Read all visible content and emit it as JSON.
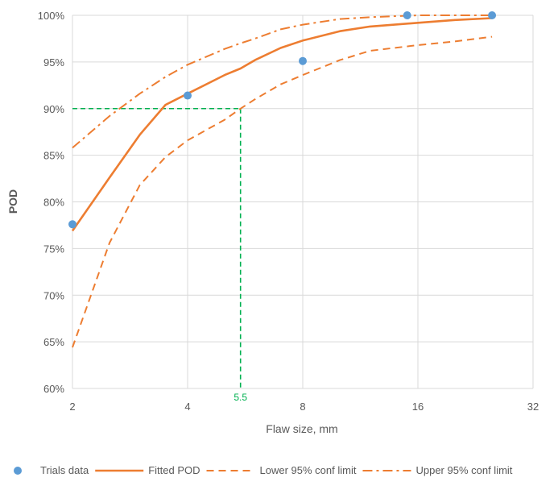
{
  "chart_data": {
    "type": "line",
    "xlabel": "Flaw size, mm",
    "ylabel": "POD",
    "x_scale": "log2",
    "xlim": [
      2,
      32
    ],
    "ylim": [
      60,
      100
    ],
    "x_ticks": [
      2,
      4,
      8,
      16,
      32
    ],
    "x_tick_labels": [
      "2",
      "4",
      "8",
      "16",
      "32"
    ],
    "y_ticks": [
      60,
      65,
      70,
      75,
      80,
      85,
      90,
      95,
      100
    ],
    "y_tick_labels": [
      "60%",
      "65%",
      "70%",
      "75%",
      "80%",
      "85%",
      "90%",
      "95%",
      "100%"
    ],
    "grid": true,
    "legend_position": "bottom",
    "annotation": {
      "label": "5.5",
      "x": 5.5,
      "y": 90,
      "color": "#00B050"
    },
    "series": [
      {
        "name": "Trials data",
        "kind": "scatter",
        "color": "#5B9BD5",
        "x": [
          2,
          4,
          8,
          15,
          25
        ],
        "y": [
          77.6,
          91.4,
          95.1,
          100,
          100
        ]
      },
      {
        "name": "Fitted POD",
        "kind": "line",
        "style": "solid",
        "color": "#ED7D31",
        "x": [
          2,
          2.5,
          3,
          3.5,
          4,
          5,
          5.5,
          6,
          7,
          8,
          10,
          12,
          16,
          20,
          25
        ],
        "y": [
          76.9,
          82.6,
          87.2,
          90.4,
          91.6,
          93.6,
          94.3,
          95.2,
          96.5,
          97.3,
          98.3,
          98.8,
          99.2,
          99.5,
          99.7
        ]
      },
      {
        "name": "Lower 95% conf limit",
        "kind": "line",
        "style": "dashed",
        "color": "#ED7D31",
        "x": [
          2,
          2.5,
          3,
          3.5,
          4,
          5,
          5.5,
          6,
          7,
          8,
          10,
          12,
          16,
          20,
          25
        ],
        "y": [
          64.4,
          75.6,
          81.8,
          84.8,
          86.6,
          88.8,
          90.0,
          91.0,
          92.6,
          93.6,
          95.2,
          96.2,
          96.8,
          97.2,
          97.7
        ]
      },
      {
        "name": "Upper 95% conf limit",
        "kind": "line",
        "style": "dashdot",
        "color": "#ED7D31",
        "x": [
          2,
          2.5,
          3,
          3.5,
          4,
          5,
          5.5,
          6,
          7,
          8,
          10,
          12,
          16,
          20,
          25
        ],
        "y": [
          85.8,
          89.2,
          91.6,
          93.4,
          94.7,
          96.4,
          97.0,
          97.5,
          98.5,
          99.0,
          99.6,
          99.8,
          100,
          100,
          100
        ]
      }
    ]
  }
}
